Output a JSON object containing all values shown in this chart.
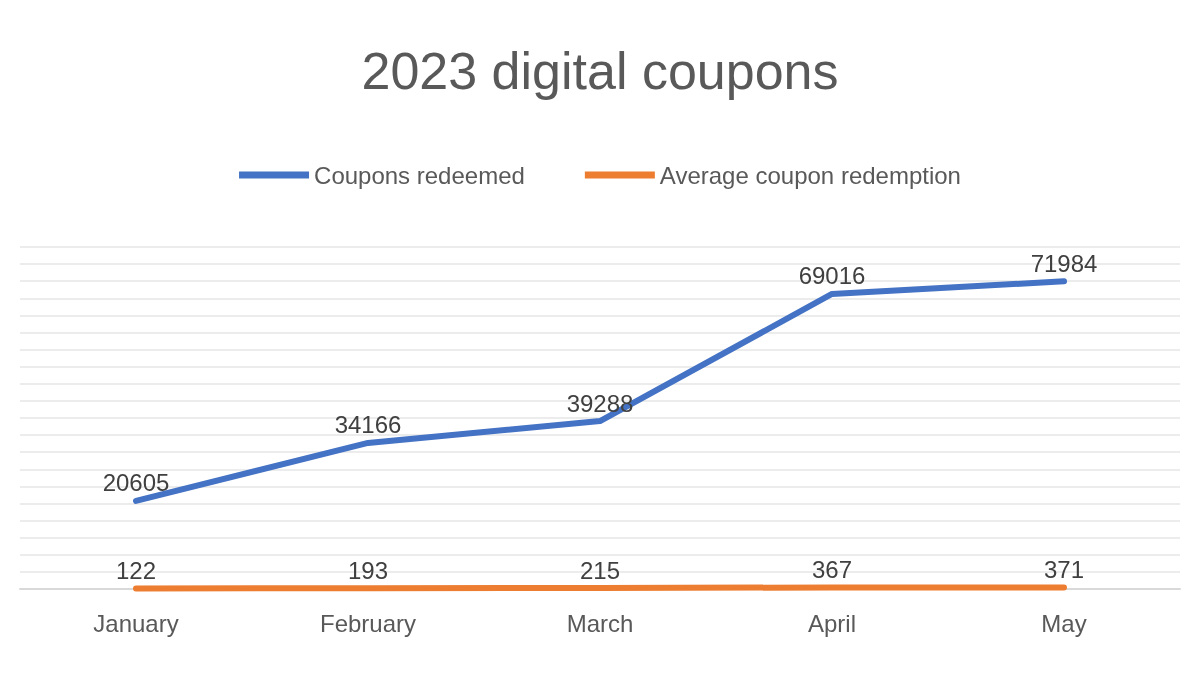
{
  "chart_data": {
    "type": "line",
    "title": "2023 digital coupons",
    "categories": [
      "January",
      "February",
      "March",
      "April",
      "May"
    ],
    "series": [
      {
        "name": "Coupons redeemed",
        "color": "#4472c4",
        "values": [
          20605,
          34166,
          39288,
          69016,
          71984
        ]
      },
      {
        "name": "Average coupon redemption",
        "color": "#ed7d31",
        "values": [
          122,
          193,
          215,
          367,
          371
        ]
      }
    ],
    "ylim": [
      0,
      80000
    ],
    "yticks": [
      {
        "value": 0,
        "label": null
      },
      {
        "value": 4000,
        "label": null
      },
      {
        "value": 8000,
        "label": null
      },
      {
        "value": 12000,
        "label": null
      },
      {
        "value": 16000,
        "label": null
      },
      {
        "value": 20000,
        "label": null
      },
      {
        "value": 24000,
        "label": null
      },
      {
        "value": 28000,
        "label": null
      },
      {
        "value": 32000,
        "label": null
      },
      {
        "value": 36000,
        "label": null
      },
      {
        "value": 40000,
        "label": null
      },
      {
        "value": 44000,
        "label": null
      },
      {
        "value": 48000,
        "label": null
      },
      {
        "value": 52000,
        "label": null
      },
      {
        "value": 56000,
        "label": null
      },
      {
        "value": 60000,
        "label": null
      },
      {
        "value": 64000,
        "label": null
      },
      {
        "value": 68000,
        "label": null
      },
      {
        "value": 72000,
        "label": null
      },
      {
        "value": 76000,
        "label": null
      },
      {
        "value": 80000,
        "label": null
      }
    ],
    "tick_labels": "x",
    "grid": "y",
    "legend": "top",
    "data_labels": true,
    "marker": "none",
    "line_style": "solid"
  }
}
